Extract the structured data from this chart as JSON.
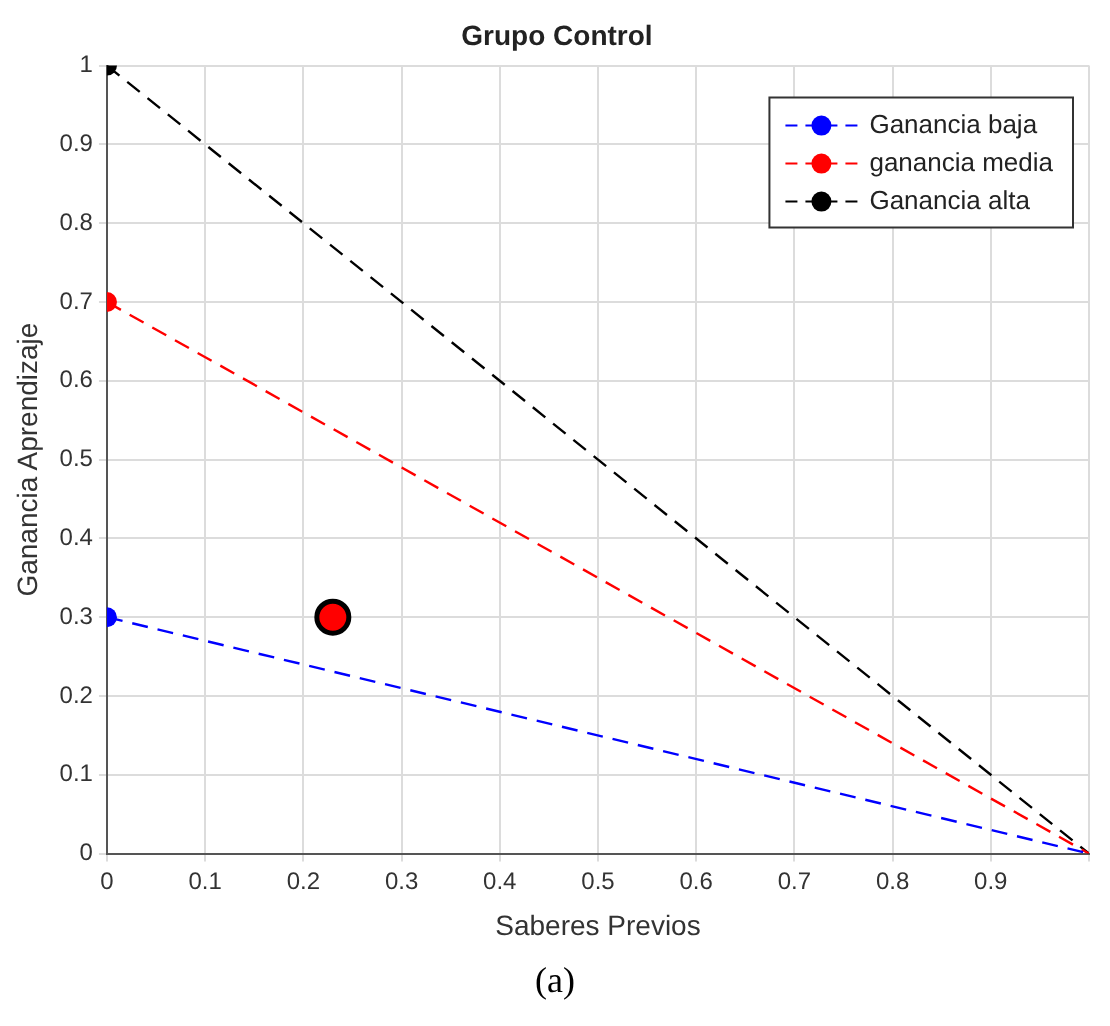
{
  "chart_data": {
    "type": "line",
    "title": "Grupo Control",
    "xlabel": "Saberes Previos",
    "ylabel": "Ganancia Aprendizaje",
    "x": [
      0,
      1
    ],
    "series": [
      {
        "name": "Ganancia baja",
        "color": "#0000ff",
        "values": [
          0.3,
          0
        ]
      },
      {
        "name": "ganancia media",
        "color": "#ff0000",
        "values": [
          0.7,
          0
        ]
      },
      {
        "name": "Ganancia alta",
        "color": "#000000",
        "values": [
          1,
          0
        ]
      },
      {
        "type": "scatter",
        "color": "#ff0000",
        "x": [
          0.23
        ],
        "values": [
          0.3
        ]
      }
    ],
    "xlim": [
      0,
      1
    ],
    "xticks": [
      0,
      0.1,
      0.2,
      0.3,
      0.4,
      0.5,
      0.6,
      0.7,
      0.8,
      0.9,
      {
        "value": 1,
        "label": null
      }
    ],
    "ylim": [
      0,
      1
    ],
    "yticks": [
      0,
      0.1,
      0.2,
      0.3,
      0.4,
      0.5,
      0.6,
      0.7,
      0.8,
      0.9,
      1
    ],
    "grid": true,
    "legend": "top right",
    "marker": "circle",
    "line_style": "dashed",
    "annotations": [
      "(a)"
    ]
  }
}
